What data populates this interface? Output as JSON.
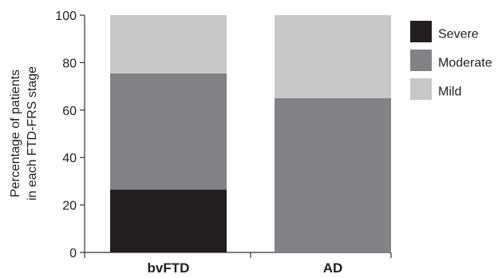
{
  "chart_data": {
    "type": "bar",
    "stacked": true,
    "categories": [
      "bvFTD",
      "AD"
    ],
    "series": [
      {
        "name": "Severe",
        "values": [
          26.5,
          0
        ],
        "color": "#231f20"
      },
      {
        "name": "Moderate",
        "values": [
          49,
          65
        ],
        "color": "#808285"
      },
      {
        "name": "Mild",
        "values": [
          24.5,
          35
        ],
        "color": "#c8c8c8"
      }
    ],
    "ylabel_lines": [
      "Percentage of patients",
      "in each FTD-FRS stage"
    ],
    "ylim": [
      0,
      100
    ],
    "yticks": [
      "0",
      "20",
      "40",
      "60",
      "80",
      "100"
    ],
    "legend_position": "top-right",
    "legend_order": [
      "Severe",
      "Moderate",
      "Mild"
    ],
    "grid": false
  }
}
